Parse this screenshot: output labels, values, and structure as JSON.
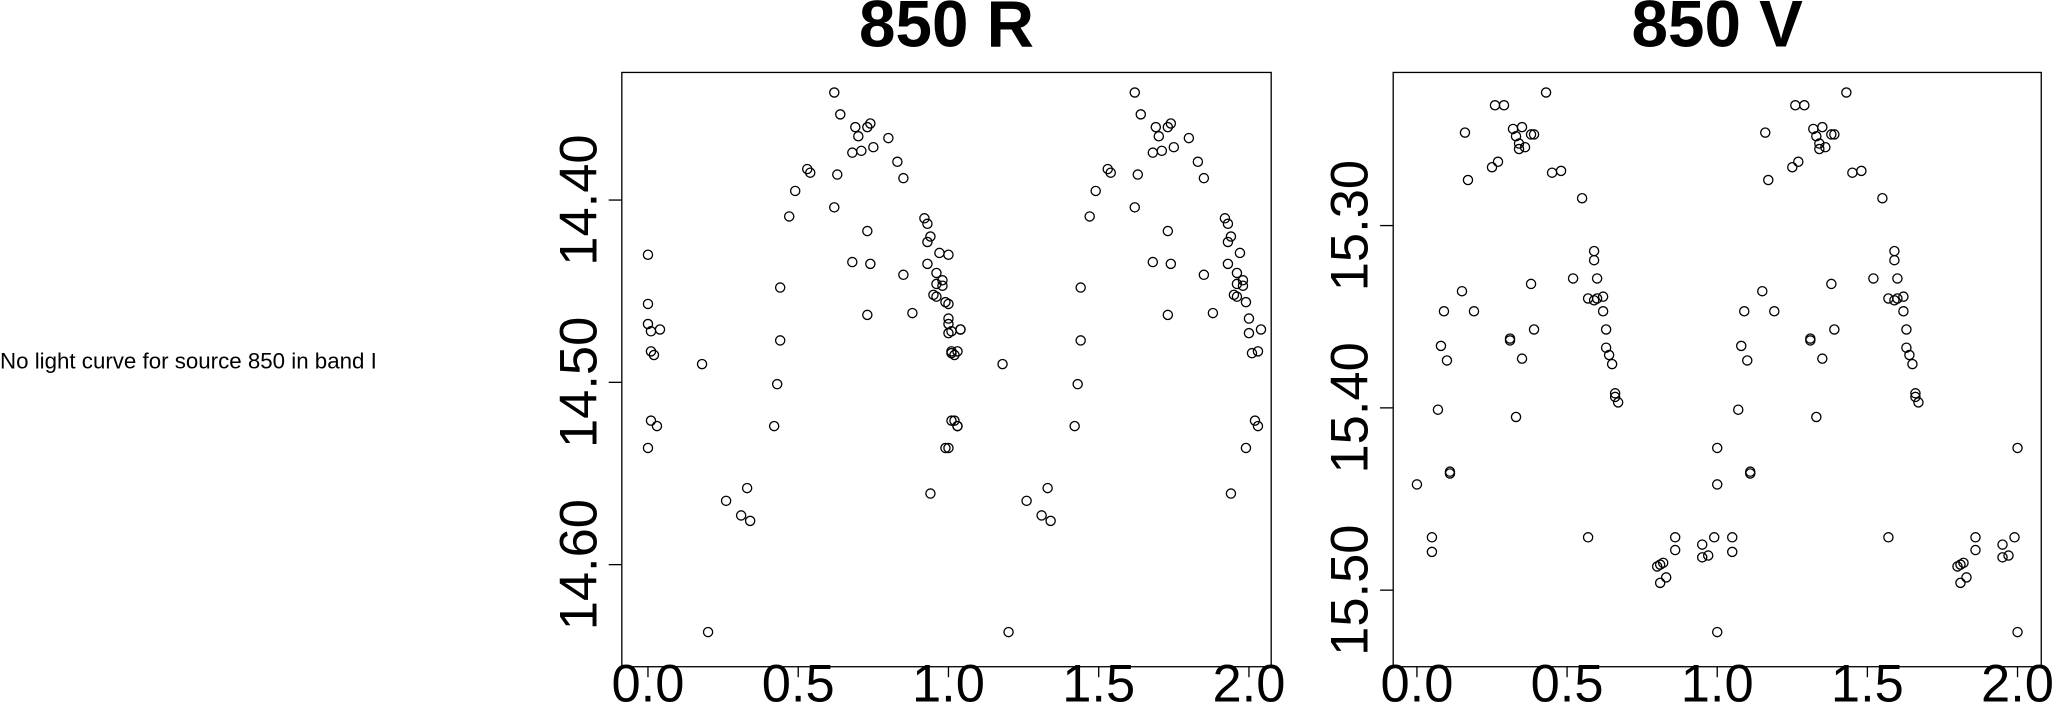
{
  "message": "No light curve for source 850 in band I",
  "chart_data": [
    {
      "type": "scatter",
      "title": "850 R",
      "color": "#000000",
      "xlim": [
        -0.087,
        2.074
      ],
      "ylim": [
        14.656,
        14.33
      ],
      "xticks": [
        {
          "value": 0,
          "label": "0.0"
        },
        {
          "value": 0.5,
          "label": "0.5"
        },
        {
          "value": 1,
          "label": "1.0"
        },
        {
          "value": 1.5,
          "label": "1.5"
        },
        {
          "value": 2,
          "label": "2.0"
        }
      ],
      "yticks": [
        {
          "value": 14.4,
          "label": "14.40"
        },
        {
          "value": 14.5,
          "label": "14.50"
        },
        {
          "value": 14.6,
          "label": "14.60"
        }
      ],
      "x": [
        0.0,
        0.0,
        0.0,
        0.01,
        0.04,
        0.01,
        0.02,
        0.01,
        0.03,
        0.0,
        0.18,
        0.2,
        0.26,
        0.31,
        0.33,
        0.34,
        0.42,
        0.43,
        0.44,
        0.44,
        0.47,
        0.49,
        0.53,
        0.54,
        0.62,
        0.62,
        0.64,
        0.63,
        0.68,
        0.68,
        0.69,
        0.7,
        0.71,
        0.73,
        0.73,
        0.73,
        0.74,
        0.74,
        0.75,
        0.8,
        0.83,
        0.85,
        0.85,
        0.88,
        0.92,
        0.93,
        0.93,
        0.94,
        0.93,
        0.94,
        0.95,
        0.96,
        0.96,
        0.96,
        0.97,
        0.98,
        0.99,
        0.98,
        1.0,
        0.99,
        1.0,
        1.01,
        1.02,
        1.03,
        1.03,
        1.04,
        1.0,
        1.0,
        1.0,
        1.01,
        1.04,
        1.01,
        1.02,
        1.01,
        1.03,
        1.0,
        1.18,
        1.2,
        1.26,
        1.31,
        1.33,
        1.34,
        1.42,
        1.43,
        1.44,
        1.44,
        1.47,
        1.49,
        1.53,
        1.54,
        1.62,
        1.62,
        1.64,
        1.63,
        1.68,
        1.68,
        1.69,
        1.7,
        1.71,
        1.73,
        1.73,
        1.73,
        1.74,
        1.74,
        1.75,
        1.8,
        1.83,
        1.85,
        1.85,
        1.88,
        1.92,
        1.93,
        1.93,
        1.94,
        1.93,
        1.94,
        1.95,
        1.96,
        1.96,
        1.96,
        1.97,
        1.98,
        1.99,
        1.98,
        2.0,
        1.99,
        2.0,
        2.01,
        2.02,
        2.03,
        2.03,
        2.04
      ],
      "values": [
        14.43,
        14.457,
        14.468,
        14.472,
        14.471,
        14.483,
        14.485,
        14.521,
        14.524,
        14.536,
        14.49,
        14.637,
        14.565,
        14.573,
        14.558,
        14.576,
        14.524,
        14.501,
        14.477,
        14.448,
        14.409,
        14.395,
        14.383,
        14.385,
        14.404,
        14.341,
        14.353,
        14.386,
        14.434,
        14.374,
        14.36,
        14.365,
        14.373,
        14.36,
        14.417,
        14.463,
        14.358,
        14.435,
        14.371,
        14.366,
        14.379,
        14.388,
        14.441,
        14.462,
        14.41,
        14.413,
        14.423,
        14.42,
        14.435,
        14.561,
        14.452,
        14.44,
        14.446,
        14.453,
        14.429,
        14.444,
        14.456,
        14.447,
        14.465,
        14.536,
        14.473,
        14.484,
        14.521,
        14.524,
        14.483,
        14.471,
        14.43,
        14.457,
        14.468,
        14.472,
        14.471,
        14.483,
        14.485,
        14.521,
        14.524,
        14.536,
        14.49,
        14.637,
        14.565,
        14.573,
        14.558,
        14.576,
        14.524,
        14.501,
        14.477,
        14.448,
        14.409,
        14.395,
        14.383,
        14.385,
        14.404,
        14.341,
        14.353,
        14.386,
        14.434,
        14.374,
        14.36,
        14.365,
        14.373,
        14.36,
        14.417,
        14.463,
        14.358,
        14.435,
        14.371,
        14.366,
        14.379,
        14.388,
        14.441,
        14.462,
        14.41,
        14.413,
        14.423,
        14.42,
        14.435,
        14.561,
        14.452,
        14.44,
        14.446,
        14.453,
        14.429,
        14.444,
        14.456,
        14.447,
        14.465,
        14.536,
        14.473,
        14.484,
        14.521,
        14.524,
        14.483,
        14.471
      ]
    },
    {
      "type": "scatter",
      "title": "850 V",
      "color": "#000000",
      "xlim": [
        -0.079,
        2.079
      ],
      "ylim": [
        15.542,
        15.216
      ],
      "xticks": [
        {
          "value": 0,
          "label": "0.0"
        },
        {
          "value": 0.5,
          "label": "0.5"
        },
        {
          "value": 1,
          "label": "1.0"
        },
        {
          "value": 1.5,
          "label": "1.5"
        },
        {
          "value": 2,
          "label": "2.0"
        }
      ],
      "yticks": [
        {
          "value": 15.3,
          "label": "15.30"
        },
        {
          "value": 15.4,
          "label": "15.40"
        },
        {
          "value": 15.5,
          "label": "15.50"
        }
      ],
      "x": [
        0.0,
        0.05,
        0.05,
        0.07,
        0.08,
        0.09,
        0.1,
        0.11,
        0.11,
        0.15,
        0.16,
        0.17,
        0.19,
        0.25,
        0.26,
        0.27,
        0.29,
        0.31,
        0.31,
        0.32,
        0.33,
        0.34,
        0.34,
        0.35,
        0.35,
        0.33,
        0.36,
        0.38,
        0.38,
        0.39,
        0.39,
        0.43,
        0.45,
        0.48,
        0.52,
        0.55,
        0.57,
        0.57,
        0.59,
        0.59,
        0.59,
        0.6,
        0.6,
        0.62,
        0.62,
        0.63,
        0.63,
        0.64,
        0.65,
        0.66,
        0.66,
        0.67,
        0.8,
        0.81,
        0.81,
        0.82,
        0.83,
        0.86,
        0.86,
        0.95,
        0.95,
        0.97,
        0.99,
        1.0,
        1.0,
        1.0,
        1.05,
        1.05,
        1.07,
        1.08,
        1.09,
        1.1,
        1.11,
        1.11,
        1.15,
        1.16,
        1.17,
        1.19,
        1.25,
        1.26,
        1.27,
        1.29,
        1.31,
        1.31,
        1.32,
        1.33,
        1.34,
        1.34,
        1.35,
        1.35,
        1.33,
        1.36,
        1.38,
        1.38,
        1.39,
        1.39,
        1.43,
        1.45,
        1.48,
        1.52,
        1.55,
        1.57,
        1.57,
        1.59,
        1.59,
        1.59,
        1.6,
        1.6,
        1.62,
        1.62,
        1.63,
        1.63,
        1.64,
        1.65,
        1.66,
        1.66,
        1.67,
        1.8,
        1.81,
        1.81,
        1.82,
        1.83,
        1.86,
        1.86,
        1.95,
        1.95,
        1.97,
        1.99,
        2.0,
        2.0
      ],
      "values": [
        15.442,
        15.471,
        15.479,
        15.401,
        15.366,
        15.347,
        15.374,
        15.435,
        15.436,
        15.336,
        15.249,
        15.275,
        15.347,
        15.268,
        15.234,
        15.265,
        15.234,
        15.362,
        15.363,
        15.247,
        15.251,
        15.255,
        15.258,
        15.246,
        15.373,
        15.405,
        15.257,
        15.25,
        15.332,
        15.357,
        15.25,
        15.227,
        15.271,
        15.27,
        15.329,
        15.285,
        15.34,
        15.471,
        15.314,
        15.341,
        15.319,
        15.329,
        15.34,
        15.339,
        15.347,
        15.357,
        15.367,
        15.371,
        15.376,
        15.392,
        15.394,
        15.397,
        15.487,
        15.486,
        15.496,
        15.485,
        15.493,
        15.478,
        15.471,
        15.482,
        15.475,
        15.481,
        15.471,
        15.422,
        15.523,
        15.442,
        15.471,
        15.479,
        15.401,
        15.366,
        15.347,
        15.374,
        15.435,
        15.436,
        15.336,
        15.249,
        15.275,
        15.347,
        15.268,
        15.234,
        15.265,
        15.234,
        15.362,
        15.363,
        15.247,
        15.251,
        15.255,
        15.258,
        15.246,
        15.373,
        15.405,
        15.257,
        15.25,
        15.332,
        15.357,
        15.25,
        15.227,
        15.271,
        15.27,
        15.329,
        15.285,
        15.34,
        15.471,
        15.314,
        15.341,
        15.319,
        15.329,
        15.34,
        15.339,
        15.347,
        15.357,
        15.367,
        15.371,
        15.376,
        15.392,
        15.394,
        15.397,
        15.487,
        15.486,
        15.496,
        15.485,
        15.493,
        15.478,
        15.471,
        15.482,
        15.475,
        15.481,
        15.471,
        15.422,
        15.523
      ]
    }
  ]
}
